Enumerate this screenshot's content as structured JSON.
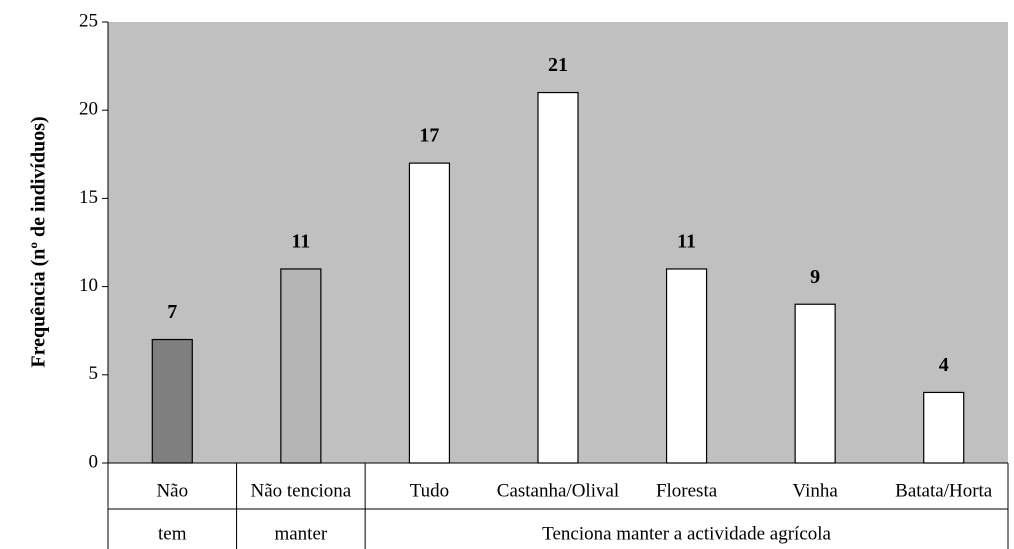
{
  "chart_data": {
    "type": "bar",
    "y_label": "Frequência (nº de indivíduos)",
    "groups": [
      {
        "label": "tem",
        "categories": [
          "Não"
        ]
      },
      {
        "label": "manter",
        "categories": [
          "Não tenciona"
        ]
      },
      {
        "label": "Tenciona manter a actividade agrícola",
        "categories": [
          "Tudo",
          "Castanha/Olival",
          "Floresta",
          "Vinha",
          "Batata/Horta"
        ]
      }
    ],
    "values": [
      7,
      11,
      17,
      21,
      11,
      9,
      4
    ],
    "colors": [
      "#7f7f7f",
      "#b4b4b4",
      "#ffffff",
      "#ffffff",
      "#ffffff",
      "#ffffff",
      "#ffffff"
    ],
    "plot_background": "#c0c0c0",
    "ylim": [
      0,
      25
    ],
    "yticks": [
      0,
      5,
      10,
      15,
      20,
      25
    ]
  }
}
